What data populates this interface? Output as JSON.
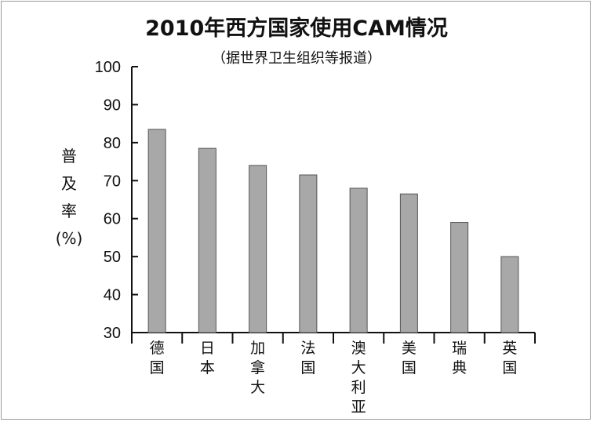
{
  "chart_data": {
    "type": "bar",
    "title": "2010年西方国家使用CAM情况",
    "subtitle": "（据世界卫生组织等报道）",
    "ylabel_chars": [
      "普",
      "及",
      "率",
      "(%)"
    ],
    "xlabel": "",
    "ylim": [
      30,
      100
    ],
    "yticks": [
      30,
      40,
      50,
      60,
      70,
      80,
      90,
      100
    ],
    "grid": false,
    "categories": [
      "德国",
      "日本",
      "加拿大",
      "法国",
      "澳大利亚",
      "美国",
      "瑞典",
      "英国"
    ],
    "values": [
      83.5,
      78.5,
      74,
      71.5,
      68,
      66.5,
      59,
      50
    ],
    "colors": {
      "bar_fill": "#a8a8a8",
      "bar_stroke": "#555555",
      "axis": "#111111"
    }
  }
}
